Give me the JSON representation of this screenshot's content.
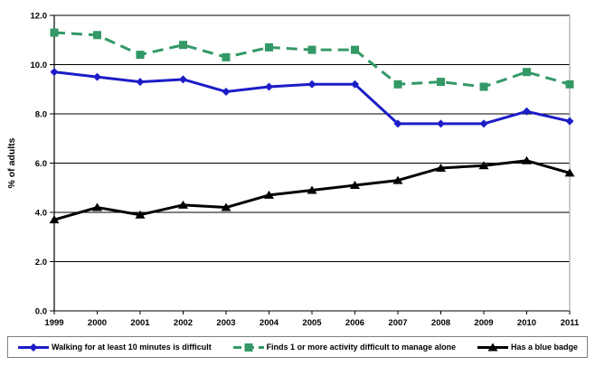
{
  "y_axis_title": "% of adults",
  "chart_data": {
    "type": "line",
    "title": "",
    "xlabel": "",
    "ylabel": "% of adults",
    "x": [
      1999,
      2000,
      2001,
      2002,
      2003,
      2004,
      2005,
      2006,
      2007,
      2008,
      2009,
      2010,
      2011
    ],
    "series": [
      {
        "name": "Walking for at least 10 minutes is difficult",
        "color": "#1C1CC8",
        "marker": "diamond",
        "dash": "solid",
        "values": [
          9.7,
          9.5,
          9.3,
          9.4,
          8.9,
          9.1,
          9.2,
          9.2,
          7.6,
          7.6,
          7.6,
          8.1,
          7.7
        ]
      },
      {
        "name": "Finds 1 or more activity difficult to manage alone",
        "color": "#339966",
        "marker": "square",
        "dash": "dashed",
        "values": [
          11.3,
          11.2,
          10.4,
          10.8,
          10.3,
          10.7,
          10.6,
          10.6,
          9.2,
          9.3,
          9.1,
          9.7,
          9.2
        ]
      },
      {
        "name": "Has a blue badge",
        "color": "#000000",
        "marker": "triangle",
        "dash": "solid",
        "values": [
          3.7,
          4.2,
          3.9,
          4.3,
          4.2,
          4.7,
          4.9,
          5.1,
          5.3,
          5.8,
          5.9,
          6.1,
          5.6
        ]
      }
    ],
    "ylim": [
      0,
      12
    ],
    "ytick_step": 2,
    "ytick_labels": [
      "0.0",
      "2.0",
      "4.0",
      "6.0",
      "8.0",
      "10.0",
      "12.0"
    ],
    "grid": true,
    "legend_position": "bottom",
    "axis_color": "#000000",
    "plot_border_right_color": "#a6a6a6"
  }
}
